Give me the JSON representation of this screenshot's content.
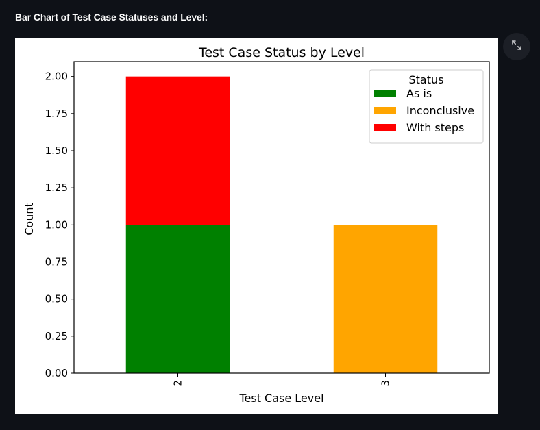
{
  "page": {
    "heading": "Bar Chart of Test Case Statuses and Level:"
  },
  "icons": {
    "expand": "fullscreen-expand-icon"
  },
  "chart_data": {
    "type": "bar",
    "stacked": true,
    "title": "Test Case Status by Level",
    "xlabel": "Test Case Level",
    "ylabel": "Count",
    "categories": [
      "2",
      "3"
    ],
    "ylim": [
      0,
      2.1
    ],
    "yticks": [
      "0.00",
      "0.25",
      "0.50",
      "0.75",
      "1.00",
      "1.25",
      "1.50",
      "1.75",
      "2.00"
    ],
    "series": [
      {
        "name": "As is",
        "values": [
          1,
          0
        ],
        "color": "#008000"
      },
      {
        "name": "Inconclusive",
        "values": [
          0,
          1
        ],
        "color": "#ffa500"
      },
      {
        "name": "With steps",
        "values": [
          1,
          0
        ],
        "color": "#ff0000"
      }
    ],
    "legend": {
      "title": "Status",
      "placement": "top-right"
    },
    "grid": false
  }
}
